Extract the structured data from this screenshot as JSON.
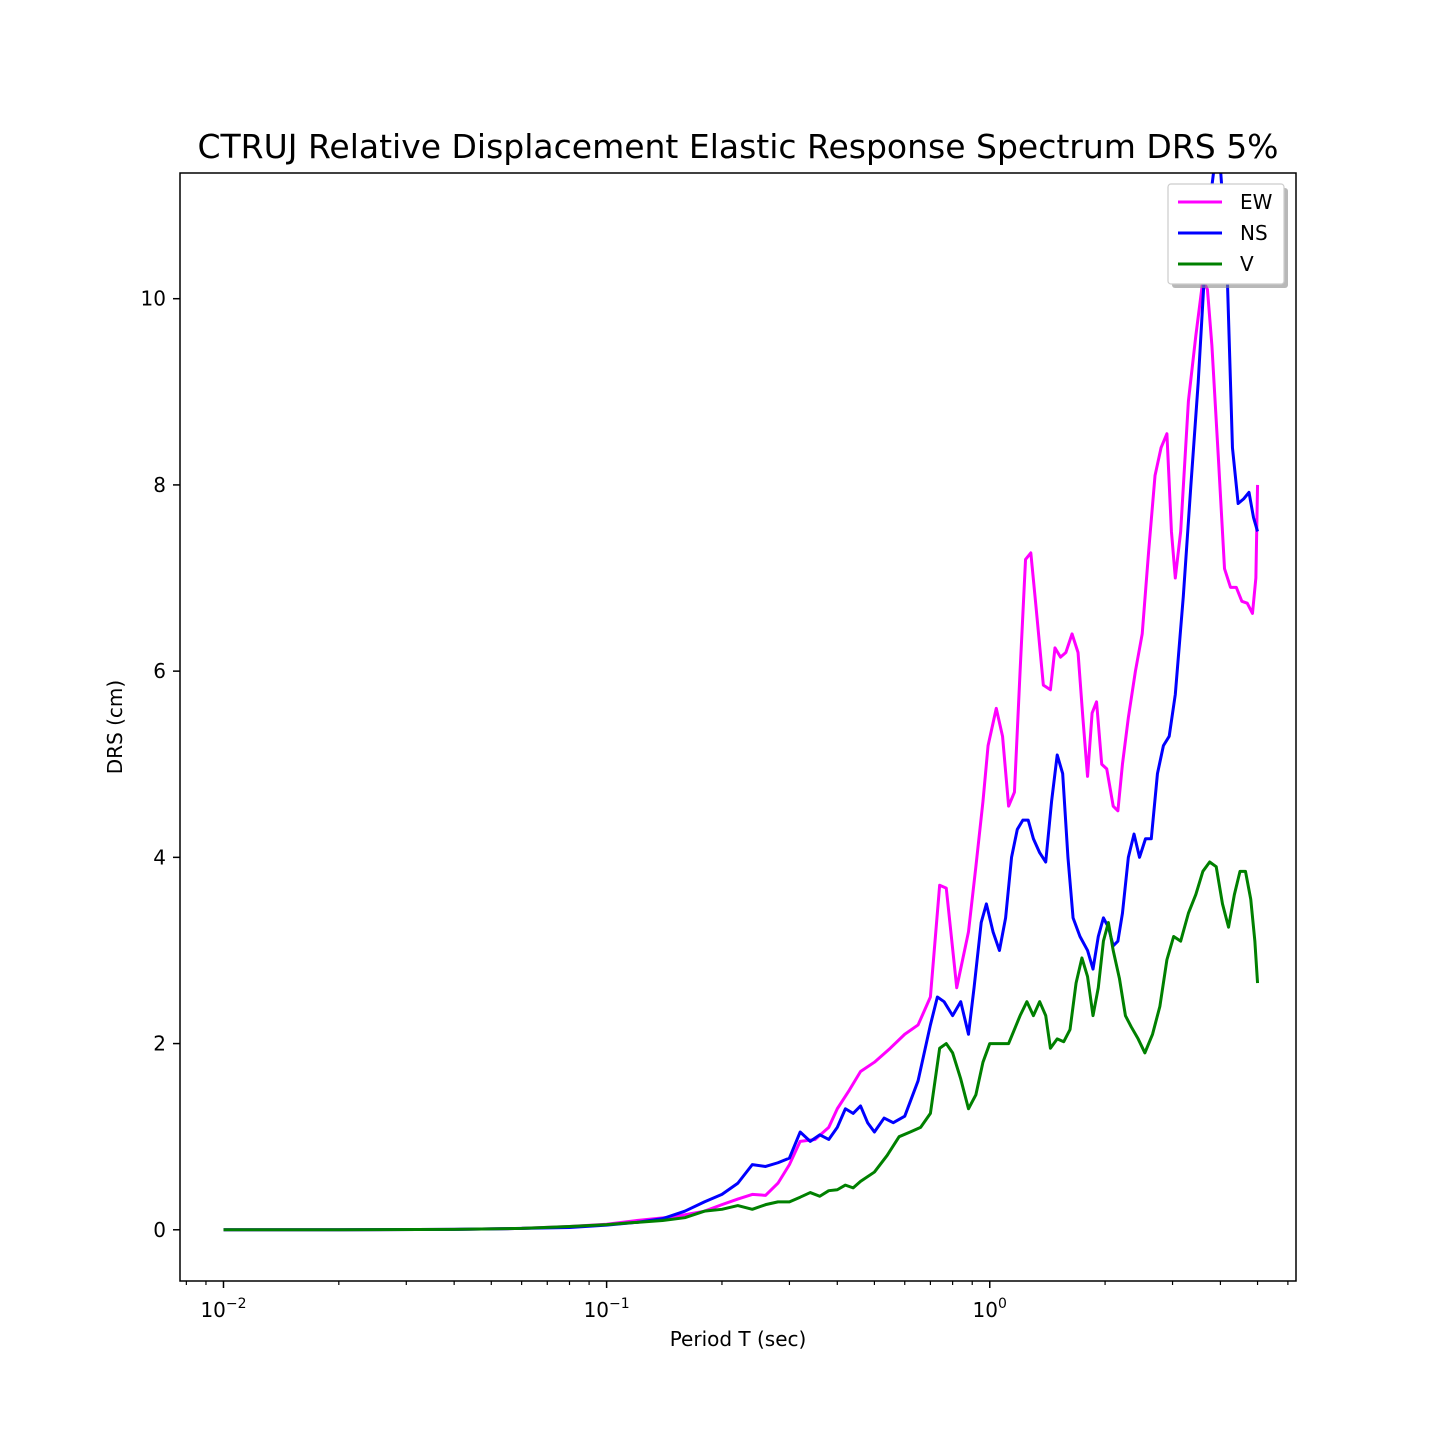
{
  "chart_data": {
    "type": "line",
    "title": "CTRUJ Relative Displacement Elastic Response Spectrum DRS 5%",
    "xlabel": "Period T (sec)",
    "ylabel": "DRS (cm)",
    "xscale": "log",
    "xlim": [
      0.0077,
      6.3
    ],
    "ylim": [
      -0.55,
      11.35
    ],
    "x_ticks": [
      {
        "value": 0.01,
        "base": "10",
        "exp": "−2"
      },
      {
        "value": 0.1,
        "base": "10",
        "exp": "−1"
      },
      {
        "value": 1,
        "base": "10",
        "exp": "0"
      }
    ],
    "y_ticks": [
      "0",
      "2",
      "4",
      "6",
      "8",
      "10"
    ],
    "grid": false,
    "legend": "top-right",
    "series": [
      {
        "name": "EW",
        "color": "#ff00ff",
        "points": [
          [
            0.01,
            0
          ],
          [
            0.02,
            0
          ],
          [
            0.04,
            0.005
          ],
          [
            0.06,
            0.015
          ],
          [
            0.08,
            0.035
          ],
          [
            0.1,
            0.06
          ],
          [
            0.12,
            0.1
          ],
          [
            0.15,
            0.14
          ],
          [
            0.18,
            0.2
          ],
          [
            0.2,
            0.27
          ],
          [
            0.22,
            0.33
          ],
          [
            0.24,
            0.38
          ],
          [
            0.26,
            0.37
          ],
          [
            0.28,
            0.5
          ],
          [
            0.3,
            0.7
          ],
          [
            0.32,
            0.95
          ],
          [
            0.35,
            0.97
          ],
          [
            0.38,
            1.1
          ],
          [
            0.4,
            1.3
          ],
          [
            0.43,
            1.5
          ],
          [
            0.46,
            1.7
          ],
          [
            0.5,
            1.8
          ],
          [
            0.55,
            1.95
          ],
          [
            0.6,
            2.1
          ],
          [
            0.65,
            2.2
          ],
          [
            0.7,
            2.5
          ],
          [
            0.74,
            3.7
          ],
          [
            0.77,
            3.67
          ],
          [
            0.82,
            2.6
          ],
          [
            0.88,
            3.2
          ],
          [
            0.92,
            3.9
          ],
          [
            0.96,
            4.6
          ],
          [
            0.99,
            5.2
          ],
          [
            1.04,
            5.6
          ],
          [
            1.08,
            5.3
          ],
          [
            1.12,
            4.55
          ],
          [
            1.16,
            4.7
          ],
          [
            1.2,
            6.0
          ],
          [
            1.24,
            7.2
          ],
          [
            1.28,
            7.27
          ],
          [
            1.32,
            6.7
          ],
          [
            1.38,
            5.85
          ],
          [
            1.44,
            5.8
          ],
          [
            1.48,
            6.25
          ],
          [
            1.53,
            6.15
          ],
          [
            1.58,
            6.2
          ],
          [
            1.64,
            6.4
          ],
          [
            1.7,
            6.2
          ],
          [
            1.75,
            5.5
          ],
          [
            1.8,
            4.87
          ],
          [
            1.85,
            5.55
          ],
          [
            1.9,
            5.67
          ],
          [
            1.96,
            5.0
          ],
          [
            2.02,
            4.95
          ],
          [
            2.1,
            4.55
          ],
          [
            2.16,
            4.5
          ],
          [
            2.22,
            5.0
          ],
          [
            2.3,
            5.5
          ],
          [
            2.4,
            6.0
          ],
          [
            2.5,
            6.4
          ],
          [
            2.6,
            7.3
          ],
          [
            2.7,
            8.1
          ],
          [
            2.8,
            8.4
          ],
          [
            2.9,
            8.55
          ],
          [
            2.98,
            7.5
          ],
          [
            3.05,
            7.0
          ],
          [
            3.15,
            7.5
          ],
          [
            3.3,
            8.9
          ],
          [
            3.45,
            9.6
          ],
          [
            3.6,
            10.2
          ],
          [
            3.7,
            10.1
          ],
          [
            3.8,
            9.5
          ],
          [
            3.95,
            8.3
          ],
          [
            4.1,
            7.1
          ],
          [
            4.25,
            6.9
          ],
          [
            4.4,
            6.9
          ],
          [
            4.55,
            6.75
          ],
          [
            4.7,
            6.73
          ],
          [
            4.85,
            6.62
          ],
          [
            4.95,
            7.0
          ],
          [
            5.0,
            8.0
          ]
        ]
      },
      {
        "name": "NS",
        "color": "#0000ff",
        "points": [
          [
            0.01,
            0
          ],
          [
            0.02,
            0
          ],
          [
            0.04,
            0.005
          ],
          [
            0.06,
            0.015
          ],
          [
            0.08,
            0.025
          ],
          [
            0.1,
            0.05
          ],
          [
            0.12,
            0.08
          ],
          [
            0.14,
            0.12
          ],
          [
            0.16,
            0.2
          ],
          [
            0.18,
            0.3
          ],
          [
            0.2,
            0.38
          ],
          [
            0.22,
            0.5
          ],
          [
            0.24,
            0.7
          ],
          [
            0.26,
            0.68
          ],
          [
            0.28,
            0.72
          ],
          [
            0.3,
            0.77
          ],
          [
            0.32,
            1.05
          ],
          [
            0.34,
            0.95
          ],
          [
            0.36,
            1.02
          ],
          [
            0.38,
            0.97
          ],
          [
            0.4,
            1.1
          ],
          [
            0.42,
            1.3
          ],
          [
            0.44,
            1.25
          ],
          [
            0.46,
            1.33
          ],
          [
            0.48,
            1.15
          ],
          [
            0.5,
            1.05
          ],
          [
            0.53,
            1.2
          ],
          [
            0.56,
            1.15
          ],
          [
            0.6,
            1.22
          ],
          [
            0.65,
            1.6
          ],
          [
            0.7,
            2.2
          ],
          [
            0.73,
            2.5
          ],
          [
            0.76,
            2.45
          ],
          [
            0.8,
            2.3
          ],
          [
            0.84,
            2.45
          ],
          [
            0.88,
            2.1
          ],
          [
            0.91,
            2.6
          ],
          [
            0.95,
            3.3
          ],
          [
            0.98,
            3.5
          ],
          [
            1.02,
            3.2
          ],
          [
            1.06,
            3.0
          ],
          [
            1.1,
            3.35
          ],
          [
            1.14,
            4.0
          ],
          [
            1.18,
            4.3
          ],
          [
            1.22,
            4.4
          ],
          [
            1.26,
            4.4
          ],
          [
            1.3,
            4.2
          ],
          [
            1.35,
            4.05
          ],
          [
            1.4,
            3.95
          ],
          [
            1.45,
            4.6
          ],
          [
            1.5,
            5.1
          ],
          [
            1.55,
            4.9
          ],
          [
            1.6,
            4.0
          ],
          [
            1.65,
            3.35
          ],
          [
            1.72,
            3.15
          ],
          [
            1.8,
            3.0
          ],
          [
            1.86,
            2.8
          ],
          [
            1.92,
            3.15
          ],
          [
            1.98,
            3.35
          ],
          [
            2.04,
            3.25
          ],
          [
            2.1,
            3.05
          ],
          [
            2.16,
            3.1
          ],
          [
            2.22,
            3.4
          ],
          [
            2.3,
            4.0
          ],
          [
            2.38,
            4.25
          ],
          [
            2.46,
            4.0
          ],
          [
            2.55,
            4.2
          ],
          [
            2.64,
            4.2
          ],
          [
            2.74,
            4.9
          ],
          [
            2.84,
            5.2
          ],
          [
            2.94,
            5.3
          ],
          [
            3.05,
            5.75
          ],
          [
            3.2,
            6.8
          ],
          [
            3.35,
            8.0
          ],
          [
            3.5,
            9.1
          ],
          [
            3.62,
            10.15
          ],
          [
            3.72,
            10.9
          ],
          [
            3.85,
            11.4
          ],
          [
            4.0,
            11.4
          ],
          [
            4.15,
            10.5
          ],
          [
            4.3,
            8.4
          ],
          [
            4.45,
            7.8
          ],
          [
            4.6,
            7.85
          ],
          [
            4.75,
            7.92
          ],
          [
            4.88,
            7.65
          ],
          [
            5.0,
            7.5
          ]
        ]
      },
      {
        "name": "V",
        "color": "#008000",
        "points": [
          [
            0.01,
            0
          ],
          [
            0.02,
            0
          ],
          [
            0.04,
            0.005
          ],
          [
            0.06,
            0.015
          ],
          [
            0.08,
            0.035
          ],
          [
            0.1,
            0.055
          ],
          [
            0.12,
            0.08
          ],
          [
            0.14,
            0.1
          ],
          [
            0.16,
            0.13
          ],
          [
            0.18,
            0.2
          ],
          [
            0.2,
            0.22
          ],
          [
            0.22,
            0.26
          ],
          [
            0.24,
            0.22
          ],
          [
            0.26,
            0.27
          ],
          [
            0.28,
            0.3
          ],
          [
            0.3,
            0.3
          ],
          [
            0.32,
            0.35
          ],
          [
            0.34,
            0.4
          ],
          [
            0.36,
            0.36
          ],
          [
            0.38,
            0.42
          ],
          [
            0.4,
            0.43
          ],
          [
            0.42,
            0.48
          ],
          [
            0.44,
            0.45
          ],
          [
            0.46,
            0.52
          ],
          [
            0.5,
            0.62
          ],
          [
            0.54,
            0.8
          ],
          [
            0.58,
            1.0
          ],
          [
            0.62,
            1.05
          ],
          [
            0.66,
            1.1
          ],
          [
            0.7,
            1.25
          ],
          [
            0.74,
            1.95
          ],
          [
            0.77,
            2.0
          ],
          [
            0.8,
            1.9
          ],
          [
            0.84,
            1.62
          ],
          [
            0.88,
            1.3
          ],
          [
            0.92,
            1.45
          ],
          [
            0.96,
            1.8
          ],
          [
            1.0,
            2.0
          ],
          [
            1.05,
            2.0
          ],
          [
            1.12,
            2.0
          ],
          [
            1.2,
            2.3
          ],
          [
            1.25,
            2.45
          ],
          [
            1.3,
            2.3
          ],
          [
            1.35,
            2.45
          ],
          [
            1.4,
            2.3
          ],
          [
            1.44,
            1.95
          ],
          [
            1.5,
            2.05
          ],
          [
            1.56,
            2.02
          ],
          [
            1.62,
            2.15
          ],
          [
            1.68,
            2.65
          ],
          [
            1.74,
            2.92
          ],
          [
            1.8,
            2.72
          ],
          [
            1.86,
            2.3
          ],
          [
            1.92,
            2.6
          ],
          [
            1.98,
            3.1
          ],
          [
            2.04,
            3.3
          ],
          [
            2.1,
            3.0
          ],
          [
            2.18,
            2.7
          ],
          [
            2.26,
            2.3
          ],
          [
            2.34,
            2.18
          ],
          [
            2.44,
            2.05
          ],
          [
            2.54,
            1.9
          ],
          [
            2.66,
            2.1
          ],
          [
            2.78,
            2.4
          ],
          [
            2.9,
            2.9
          ],
          [
            3.02,
            3.15
          ],
          [
            3.15,
            3.1
          ],
          [
            3.3,
            3.4
          ],
          [
            3.45,
            3.6
          ],
          [
            3.6,
            3.85
          ],
          [
            3.75,
            3.95
          ],
          [
            3.9,
            3.9
          ],
          [
            4.05,
            3.5
          ],
          [
            4.2,
            3.25
          ],
          [
            4.35,
            3.6
          ],
          [
            4.5,
            3.85
          ],
          [
            4.65,
            3.85
          ],
          [
            4.8,
            3.55
          ],
          [
            4.92,
            3.1
          ],
          [
            5.0,
            2.65
          ]
        ]
      }
    ]
  }
}
